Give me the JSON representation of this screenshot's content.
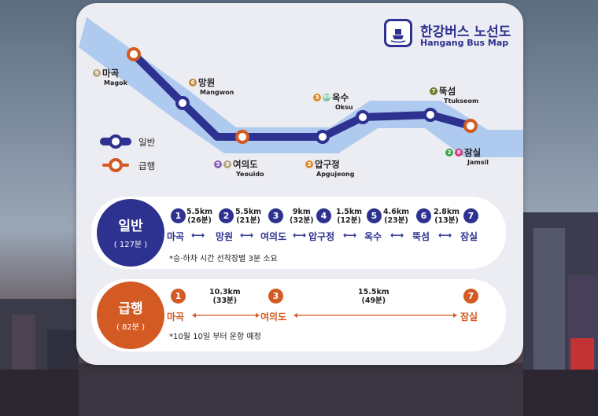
{
  "title": {
    "ko": "한강버스 노선도",
    "en": "Hangang Bus Map",
    "logo_icon": "bus-boat-icon"
  },
  "colors": {
    "navy": "#2d3190",
    "orange": "#d35a22",
    "river": "#a9c6ee"
  },
  "map_stations": [
    {
      "id": "magok",
      "ko": "마곡",
      "en": "Magok",
      "lines": [
        "9"
      ]
    },
    {
      "id": "mangwon",
      "ko": "망원",
      "en": "Mangwon",
      "lines": [
        "6"
      ]
    },
    {
      "id": "yeouido",
      "ko": "여의도",
      "en": "Yeouido",
      "lines": [
        "5",
        "9"
      ]
    },
    {
      "id": "apgujeong",
      "ko": "압구정",
      "en": "Apgujeong",
      "lines": [
        "3"
      ]
    },
    {
      "id": "oksu",
      "ko": "옥수",
      "en": "Oksu",
      "lines": [
        "3",
        "경의"
      ]
    },
    {
      "id": "ttukseom",
      "ko": "뚝섬",
      "en": "Ttukseom",
      "lines": [
        "7"
      ]
    },
    {
      "id": "jamsil",
      "ko": "잠실",
      "en": "Jamsil",
      "lines": [
        "2",
        "8"
      ]
    }
  ],
  "legend": {
    "regular": "일반",
    "express": "급행"
  },
  "regular": {
    "name": "일반",
    "duration": "( 127분 )",
    "numbers": [
      "1",
      "2",
      "3",
      "4",
      "5",
      "6",
      "7"
    ],
    "stations": [
      "마곡",
      "망원",
      "여의도",
      "압구정",
      "옥수",
      "뚝섬",
      "잠실"
    ],
    "segments": [
      {
        "dist": "5.5km",
        "time": "(26분)"
      },
      {
        "dist": "5.5km",
        "time": "(21분)"
      },
      {
        "dist": "9km",
        "time": "(32분)"
      },
      {
        "dist": "1.5km",
        "time": "(12분)"
      },
      {
        "dist": "4.6km",
        "time": "(23분)"
      },
      {
        "dist": "2.8km",
        "time": "(13분)"
      }
    ],
    "note": "*승·하차 시간 선착장별 3분 소요"
  },
  "express": {
    "name": "급행",
    "duration": "( 82분 )",
    "numbers": [
      "1",
      "3",
      "7"
    ],
    "stations": [
      "마곡",
      "여의도",
      "잠실"
    ],
    "segments": [
      {
        "dist": "10.3km",
        "time": "(33분)"
      },
      {
        "dist": "15.5km",
        "time": "(49분)"
      }
    ],
    "note": "*10월 10일 부터 운항 예정"
  }
}
